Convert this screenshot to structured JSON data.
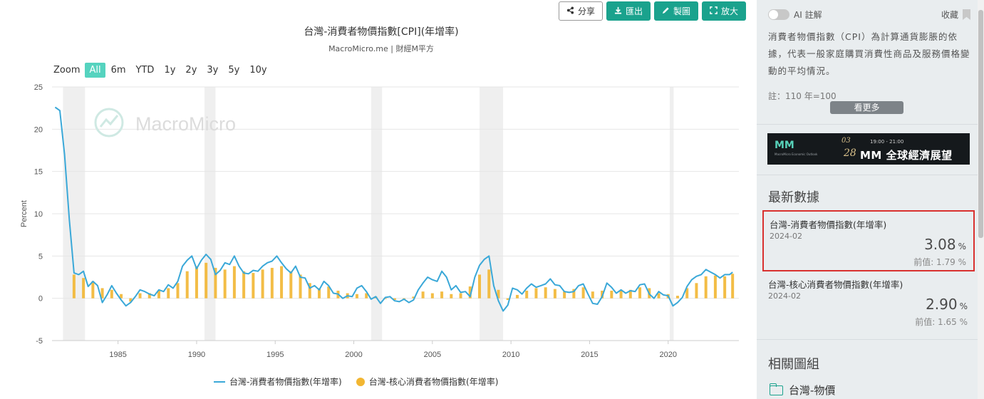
{
  "toolbar": {
    "share_label": "分享",
    "export_label": "匯出",
    "draw_label": "製圖",
    "enlarge_label": "放大"
  },
  "header": {
    "title": "台灣-消費者物價指數[CPI](年增率)",
    "subtitle": "MacroMicro.me | 財經M平方"
  },
  "zoom": {
    "label": "Zoom",
    "options": [
      "All",
      "6m",
      "YTD",
      "1y",
      "2y",
      "3y",
      "5y",
      "10y"
    ],
    "active": "All"
  },
  "watermark": "MacroMicro",
  "colors": {
    "cpi_line": "#3aa8d8",
    "core_bar": "#f2b632",
    "recession": "#efefef",
    "accent": "#1aa28d",
    "highlight_border": "#d9312f"
  },
  "chart_data": {
    "type": "line",
    "title": "台灣-消費者物價指數[CPI](年增率)",
    "ylabel": "Percent",
    "xlabel": "",
    "ylim": [
      -5,
      25
    ],
    "yticks": [
      -5,
      0,
      5,
      10,
      15,
      20,
      25
    ],
    "xlim": [
      1980.8,
      2024.5
    ],
    "xticks": [
      1985,
      1990,
      1995,
      2000,
      2005,
      2010,
      2015,
      2020
    ],
    "grid": true,
    "legend_position": "bottom",
    "recession_shading": [
      [
        1981.5,
        1982.9
      ],
      [
        1990.5,
        1991.2
      ],
      [
        2001.1,
        2001.8
      ],
      [
        2008.0,
        2009.5
      ],
      [
        2020.1,
        2020.35
      ]
    ],
    "series": [
      {
        "name": "台灣-消費者物價指數(年增率)",
        "type": "line",
        "x": [
          1981.0,
          1981.3,
          1981.6,
          1981.9,
          1982.2,
          1982.5,
          1982.8,
          1983.1,
          1983.4,
          1983.7,
          1984.0,
          1984.3,
          1984.6,
          1984.9,
          1985.2,
          1985.5,
          1985.8,
          1986.1,
          1986.4,
          1986.7,
          1987.0,
          1987.3,
          1987.6,
          1987.9,
          1988.2,
          1988.5,
          1988.8,
          1989.1,
          1989.4,
          1989.7,
          1990.0,
          1990.3,
          1990.6,
          1990.9,
          1991.2,
          1991.5,
          1991.8,
          1992.1,
          1992.4,
          1992.7,
          1993.0,
          1993.3,
          1993.6,
          1993.9,
          1994.2,
          1994.5,
          1994.8,
          1995.1,
          1995.4,
          1995.7,
          1996.0,
          1996.3,
          1996.6,
          1996.9,
          1997.2,
          1997.5,
          1997.8,
          1998.1,
          1998.4,
          1998.7,
          1999.0,
          1999.3,
          1999.6,
          1999.9,
          2000.2,
          2000.5,
          2000.8,
          2001.1,
          2001.4,
          2001.7,
          2002.0,
          2002.3,
          2002.6,
          2002.9,
          2003.2,
          2003.5,
          2003.8,
          2004.1,
          2004.4,
          2004.7,
          2005.0,
          2005.3,
          2005.6,
          2005.9,
          2006.2,
          2006.5,
          2006.8,
          2007.1,
          2007.4,
          2007.7,
          2008.0,
          2008.3,
          2008.6,
          2008.9,
          2009.2,
          2009.5,
          2009.8,
          2010.1,
          2010.4,
          2010.7,
          2011.0,
          2011.3,
          2011.6,
          2011.9,
          2012.2,
          2012.5,
          2012.8,
          2013.1,
          2013.4,
          2013.7,
          2014.0,
          2014.3,
          2014.6,
          2014.9,
          2015.2,
          2015.5,
          2015.8,
          2016.1,
          2016.4,
          2016.7,
          2017.0,
          2017.3,
          2017.6,
          2017.9,
          2018.2,
          2018.5,
          2018.8,
          2019.1,
          2019.4,
          2019.7,
          2020.0,
          2020.3,
          2020.6,
          2020.9,
          2021.2,
          2021.5,
          2021.8,
          2022.1,
          2022.4,
          2022.7,
          2023.0,
          2023.3,
          2023.6,
          2023.9,
          2024.1
        ],
        "values": [
          22.6,
          22.2,
          17.0,
          9.3,
          3.0,
          2.8,
          3.2,
          1.4,
          2.0,
          1.5,
          -0.5,
          0.4,
          1.5,
          0.6,
          -0.2,
          -0.9,
          -0.5,
          0.2,
          1.0,
          0.8,
          0.5,
          0.3,
          1.0,
          0.8,
          1.6,
          1.2,
          2.0,
          3.8,
          4.5,
          5.0,
          3.5,
          4.5,
          5.2,
          4.6,
          2.8,
          3.3,
          4.2,
          4.0,
          5.0,
          3.8,
          3.0,
          2.9,
          3.3,
          3.2,
          3.8,
          4.2,
          4.4,
          5.0,
          4.2,
          3.5,
          3.0,
          3.8,
          2.5,
          2.4,
          1.2,
          1.5,
          1.0,
          2.0,
          1.5,
          0.6,
          0.5,
          0.0,
          0.3,
          0.2,
          1.2,
          1.5,
          0.8,
          -0.1,
          0.2,
          -0.6,
          0.1,
          0.2,
          -0.3,
          -0.4,
          -0.1,
          -0.5,
          -0.2,
          1.0,
          1.8,
          2.5,
          2.2,
          2.0,
          3.2,
          2.5,
          1.0,
          1.5,
          0.7,
          0.8,
          0.2,
          2.5,
          3.9,
          4.6,
          5.0,
          1.5,
          -0.3,
          -1.5,
          -0.8,
          1.2,
          1.0,
          0.5,
          1.2,
          1.7,
          1.3,
          1.5,
          1.7,
          2.3,
          1.6,
          1.5,
          0.8,
          0.7,
          0.8,
          1.5,
          1.7,
          0.5,
          -0.6,
          -0.7,
          0.2,
          1.8,
          1.3,
          0.6,
          1.0,
          0.6,
          0.9,
          0.8,
          1.6,
          1.7,
          0.5,
          0.0,
          0.8,
          0.4,
          0.3,
          -0.9,
          -0.5,
          0.1,
          1.4,
          2.2,
          2.6,
          2.8,
          3.4,
          3.1,
          2.8,
          2.4,
          2.8,
          2.8,
          3.08
        ],
        "color": "#3aa8d8"
      },
      {
        "name": "台灣-核心消費者物價指數(年增率)",
        "type": "bar",
        "x": [
          1982.2,
          1982.8,
          1983.4,
          1984.0,
          1984.6,
          1985.2,
          1985.8,
          1986.4,
          1987.0,
          1987.6,
          1988.2,
          1988.8,
          1989.4,
          1990.0,
          1990.6,
          1991.2,
          1991.8,
          1992.4,
          1993.0,
          1993.6,
          1994.2,
          1994.8,
          1995.4,
          1996.0,
          1996.6,
          1997.2,
          1997.8,
          1998.4,
          1999.0,
          1999.6,
          2000.2,
          2000.8,
          2001.4,
          2002.0,
          2002.6,
          2003.2,
          2003.8,
          2004.4,
          2005.0,
          2005.6,
          2006.2,
          2006.8,
          2007.4,
          2008.0,
          2008.6,
          2009.2,
          2009.8,
          2010.4,
          2011.0,
          2011.6,
          2012.2,
          2012.8,
          2013.4,
          2014.0,
          2014.6,
          2015.2,
          2015.8,
          2016.4,
          2017.0,
          2017.6,
          2018.2,
          2018.8,
          2019.4,
          2020.0,
          2020.6,
          2021.2,
          2021.8,
          2022.4,
          2023.0,
          2023.6,
          2024.1
        ],
        "values": [
          2.8,
          2.4,
          2.0,
          1.2,
          1.0,
          0.5,
          -0.4,
          0.6,
          0.6,
          0.9,
          1.2,
          1.8,
          3.2,
          3.8,
          4.2,
          3.6,
          3.4,
          3.8,
          3.2,
          3.0,
          3.4,
          3.6,
          3.8,
          3.2,
          2.8,
          1.8,
          1.2,
          1.4,
          0.9,
          0.6,
          0.5,
          0.6,
          0.2,
          0.0,
          -0.2,
          -0.1,
          0.2,
          0.8,
          0.6,
          0.8,
          0.5,
          0.6,
          1.4,
          2.8,
          3.4,
          1.0,
          -0.2,
          0.4,
          0.9,
          1.2,
          1.3,
          1.1,
          0.8,
          1.1,
          1.3,
          0.8,
          0.9,
          0.9,
          1.0,
          1.0,
          1.3,
          1.2,
          0.6,
          0.5,
          0.3,
          1.2,
          1.8,
          2.6,
          2.7,
          2.6,
          2.9
        ],
        "color": "#f2b632"
      }
    ]
  },
  "sidebar": {
    "ai_label": "AI 註解",
    "favorite_label": "收藏",
    "description": "消費者物價指數（CPI）為計算通貨膨脹的依據，代表一般家庭購買消費性商品及服務價格變動的平均情況。",
    "note": "註：110 年=100",
    "more_label": "看更多",
    "banner": {
      "logo": "MM",
      "logo_sub": "MacroMicro Economic Outlook",
      "date": "03",
      "date_day": "28",
      "time": "19:00 - 21:00",
      "headline": "MM 全球經濟展望"
    },
    "latest_title": "最新數據",
    "cards": [
      {
        "name": "台灣-消費者物價指數(年增率)",
        "date": "2024-02",
        "value": "3.08",
        "unit": "%",
        "prev": "前值: 1.79 %"
      },
      {
        "name": "台灣-核心消費者物價指數(年增率)",
        "date": "2024-02",
        "value": "2.90",
        "unit": "%",
        "prev": "前值: 1.65 %"
      }
    ],
    "related_title": "相關圖組",
    "related_items": [
      "台灣-物價"
    ]
  }
}
